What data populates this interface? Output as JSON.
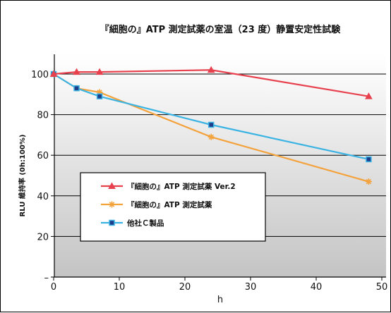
{
  "chart_data": {
    "type": "line",
    "title": "『細胞の』ATP 測定試薬の室温（23 度）静置安定性試験",
    "xlabel": "h",
    "ylabel": "RLU 維持率 (0h:100%)",
    "xlim": [
      0,
      50
    ],
    "ylim": [
      0,
      110
    ],
    "x_ticks": [
      0,
      10,
      20,
      30,
      40,
      50
    ],
    "x_tick_labels": [
      "0",
      "10",
      "20",
      "30",
      "40",
      "50"
    ],
    "y_ticks": [
      0,
      20,
      40,
      60,
      80,
      100
    ],
    "y_tick_labels": [
      "–",
      "20",
      "40",
      "60",
      "80",
      "100"
    ],
    "grid": "horizontal",
    "legend_position": "lower-left",
    "series": [
      {
        "name": "『細胞の』ATP 測定試薬 Ver.2",
        "color": "#e8414e",
        "marker": "triangle",
        "x": [
          0,
          3.5,
          7,
          24,
          48
        ],
        "y": [
          100,
          101,
          101,
          102,
          89
        ]
      },
      {
        "name": "『細胞の』ATP 測定試薬",
        "color": "#f4a23c",
        "marker": "asterisk",
        "x": [
          0,
          3.5,
          7,
          24,
          48
        ],
        "y": [
          100,
          93,
          91,
          69,
          47
        ]
      },
      {
        "name": "他社Ｃ製品",
        "color": "#3bb3e3",
        "marker": "square",
        "x": [
          0,
          3.5,
          7,
          24,
          48
        ],
        "y": [
          100,
          93,
          89,
          75,
          58
        ]
      }
    ]
  }
}
